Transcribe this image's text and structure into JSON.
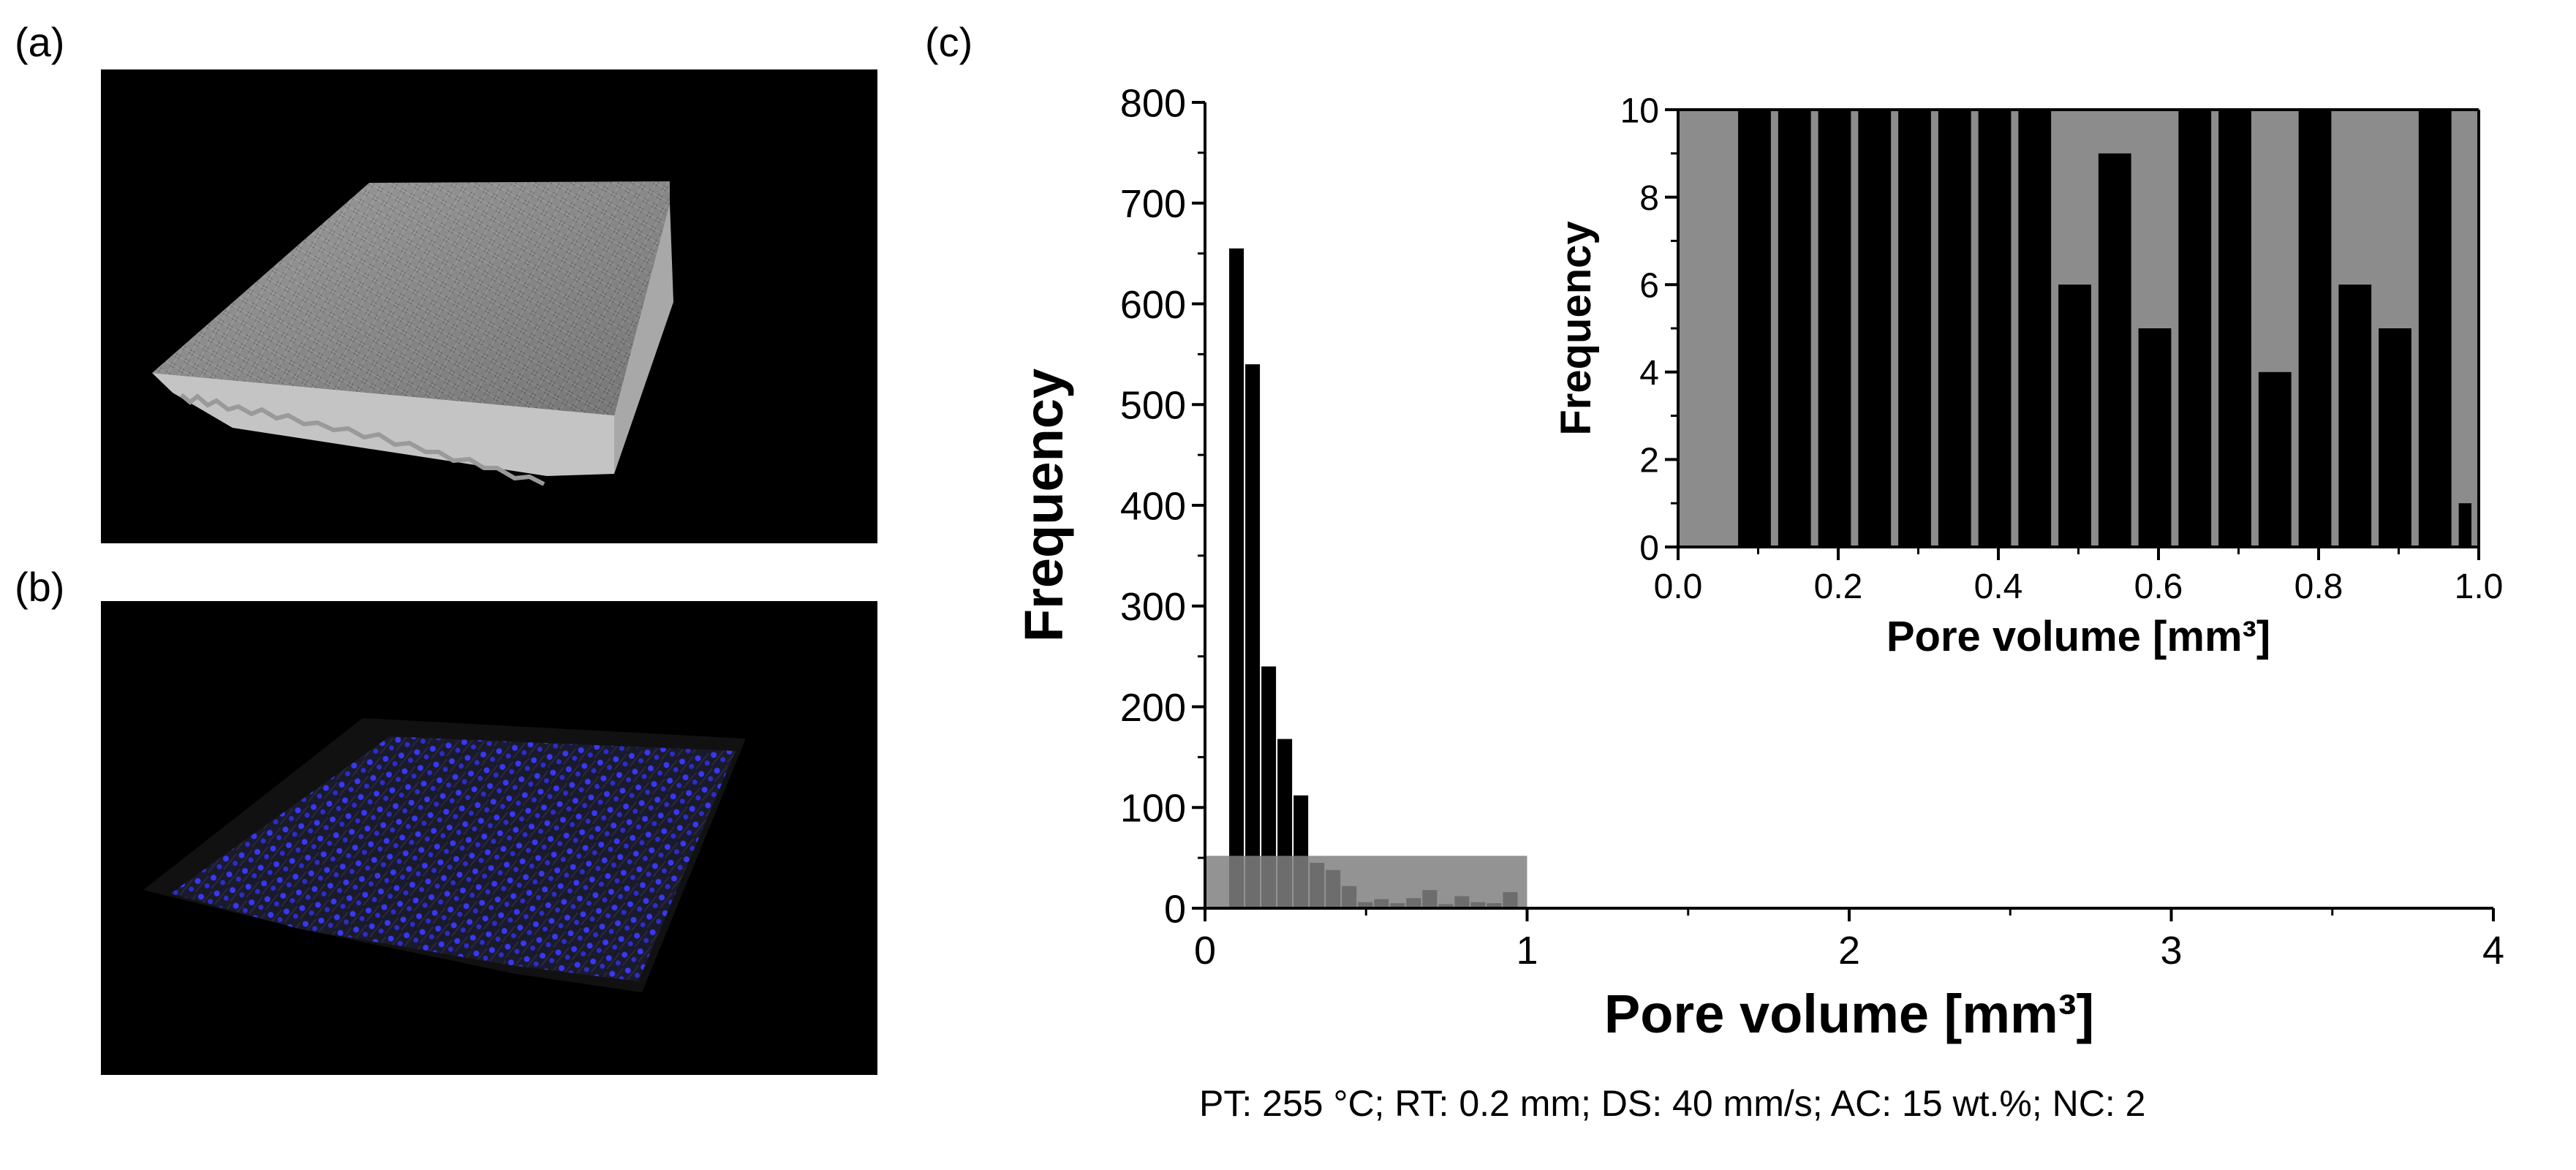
{
  "panels": {
    "a": {
      "label": "(a)"
    },
    "b": {
      "label": "(b)"
    },
    "c": {
      "label": "(c)"
    }
  },
  "caption": "PT: 255 °C; RT: 0.2 mm; DS: 40 mm/s; AC: 15 wt.%; NC: 2",
  "chart_data": [
    {
      "type": "bar",
      "xlabel": "Pore volume [mm³]",
      "ylabel": "Frequency",
      "xlim": [
        0,
        4
      ],
      "ylim": [
        0,
        800
      ],
      "xticks": [
        "0",
        "1",
        "2",
        "3",
        "4"
      ],
      "yticks": [
        "0",
        "100",
        "200",
        "300",
        "400",
        "500",
        "600",
        "700",
        "800"
      ],
      "bin_width": 0.05,
      "bins": [
        {
          "x": 0.1,
          "y": 655
        },
        {
          "x": 0.15,
          "y": 540
        },
        {
          "x": 0.2,
          "y": 240
        },
        {
          "x": 0.25,
          "y": 168
        },
        {
          "x": 0.3,
          "y": 112
        },
        {
          "x": 0.35,
          "y": 45
        },
        {
          "x": 0.4,
          "y": 38
        },
        {
          "x": 0.45,
          "y": 22
        },
        {
          "x": 0.5,
          "y": 6
        },
        {
          "x": 0.55,
          "y": 9
        },
        {
          "x": 0.6,
          "y": 5
        },
        {
          "x": 0.65,
          "y": 10
        },
        {
          "x": 0.7,
          "y": 18
        },
        {
          "x": 0.75,
          "y": 4
        },
        {
          "x": 0.8,
          "y": 12
        },
        {
          "x": 0.85,
          "y": 6
        },
        {
          "x": 0.9,
          "y": 5
        },
        {
          "x": 0.95,
          "y": 16
        },
        {
          "x": 2.3,
          "y": 1
        }
      ],
      "highlight_region": {
        "x": [
          0,
          1
        ],
        "y": [
          0,
          52
        ],
        "color": "#808080"
      },
      "bar_color": "#000000"
    },
    {
      "type": "bar",
      "xlabel": "Pore volume [mm³]",
      "ylabel": "Frequency",
      "xlim": [
        0,
        1
      ],
      "ylim": [
        0,
        10
      ],
      "xticks": [
        "0.0",
        "0.2",
        "0.4",
        "0.6",
        "0.8",
        "1.0"
      ],
      "yticks": [
        "0",
        "2",
        "4",
        "6",
        "8",
        "10"
      ],
      "background": "#8c8c8c",
      "bar_color": "#000000",
      "bin_width": 0.05,
      "bins": [
        {
          "x": 0.1,
          "y": 10
        },
        {
          "x": 0.15,
          "y": 10
        },
        {
          "x": 0.2,
          "y": 10
        },
        {
          "x": 0.25,
          "y": 10
        },
        {
          "x": 0.3,
          "y": 10
        },
        {
          "x": 0.35,
          "y": 10
        },
        {
          "x": 0.4,
          "y": 10
        },
        {
          "x": 0.45,
          "y": 10
        },
        {
          "x": 0.5,
          "y": 6
        },
        {
          "x": 0.55,
          "y": 9
        },
        {
          "x": 0.6,
          "y": 5
        },
        {
          "x": 0.65,
          "y": 10
        },
        {
          "x": 0.7,
          "y": 10
        },
        {
          "x": 0.75,
          "y": 4
        },
        {
          "x": 0.8,
          "y": 10
        },
        {
          "x": 0.85,
          "y": 6
        },
        {
          "x": 0.9,
          "y": 5
        },
        {
          "x": 0.95,
          "y": 10
        },
        {
          "x": 1.0,
          "y": 1
        }
      ]
    }
  ]
}
